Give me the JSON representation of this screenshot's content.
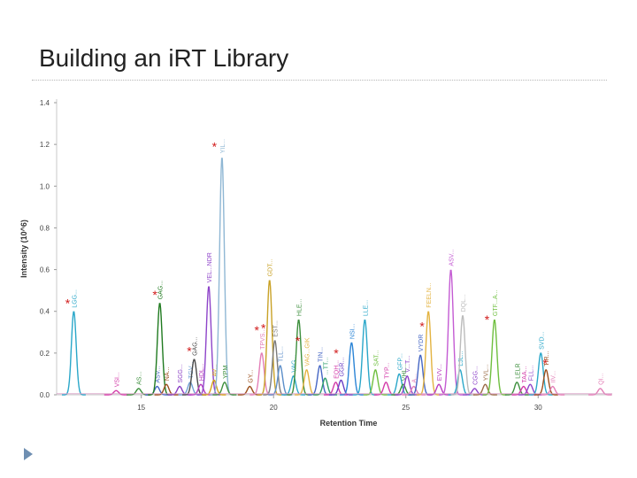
{
  "slide": {
    "title": "Building an iRT Library"
  },
  "chart_data": {
    "type": "line",
    "xlabel": "Retention Time",
    "ylabel": "Intensity (10^6)",
    "xlim": [
      11.8,
      32.8
    ],
    "ylim": [
      0,
      1.4
    ],
    "xticks": [
      15,
      20,
      25,
      30
    ],
    "yticks": [
      "0.0",
      "0.2",
      "0.4",
      "0.6",
      "0.8",
      "1.0",
      "1.2",
      "1.4"
    ],
    "grid": false,
    "peaks": [
      {
        "rt": 12.45,
        "h": 0.4,
        "color": "#2aa7c9",
        "label": "LGG..."
      },
      {
        "rt": 14.05,
        "h": 0.02,
        "color": "#d33aa8",
        "label": "VSI..."
      },
      {
        "rt": 14.9,
        "h": 0.03,
        "color": "#3d8f3d",
        "label": "AS..."
      },
      {
        "rt": 15.6,
        "h": 0.04,
        "color": "#4566c4",
        "label": "ASV..."
      },
      {
        "rt": 15.7,
        "h": 0.44,
        "color": "#1f7a1f",
        "label": "GAG..."
      },
      {
        "rt": 15.95,
        "h": 0.05,
        "color": "#9c4f1c",
        "label": "NA..."
      },
      {
        "rt": 16.45,
        "h": 0.04,
        "color": "#8a3fc4",
        "label": "SGG..."
      },
      {
        "rt": 16.85,
        "h": 0.06,
        "color": "#6fa0d6",
        "label": "TGV..."
      },
      {
        "rt": 17.0,
        "h": 0.17,
        "color": "#4a4a4a",
        "label": "GAG..."
      },
      {
        "rt": 17.25,
        "h": 0.05,
        "color": "#b93bbf",
        "label": "HDL..."
      },
      {
        "rt": 17.55,
        "h": 0.52,
        "color": "#8e44c9",
        "label": "VEL...NDR"
      },
      {
        "rt": 17.75,
        "h": 0.07,
        "color": "#d4a017",
        "label": "AV..."
      },
      {
        "rt": 18.05,
        "h": 1.14,
        "color": "#8fb7d4",
        "label": "YIL..."
      },
      {
        "rt": 18.15,
        "h": 0.06,
        "color": "#3d8f3d",
        "label": "YPM"
      },
      {
        "rt": 19.1,
        "h": 0.04,
        "color": "#9c4f1c",
        "label": "GY..."
      },
      {
        "rt": 19.55,
        "h": 0.2,
        "color": "#e37fb7",
        "label": "TPVS..."
      },
      {
        "rt": 19.85,
        "h": 0.55,
        "color": "#c9a227",
        "label": "GDT..."
      },
      {
        "rt": 20.05,
        "h": 0.26,
        "color": "#7b7b7b",
        "label": "EST..."
      },
      {
        "rt": 20.25,
        "h": 0.14,
        "color": "#5b8ec9",
        "label": "TLL..."
      },
      {
        "rt": 20.75,
        "h": 0.09,
        "color": "#2aa7c9",
        "label": "VAG..."
      },
      {
        "rt": 20.95,
        "h": 0.36,
        "color": "#3d8f3d",
        "label": "HLE..."
      },
      {
        "rt": 21.25,
        "h": 0.12,
        "color": "#e3b341",
        "label": "VAG...GIK"
      },
      {
        "rt": 21.75,
        "h": 0.14,
        "color": "#4566c4",
        "label": "TIN..."
      },
      {
        "rt": 21.95,
        "h": 0.08,
        "color": "#2e9f6b",
        "label": "...TT..."
      },
      {
        "rt": 22.35,
        "h": 0.06,
        "color": "#d33aa8",
        "label": "EQH..."
      },
      {
        "rt": 22.55,
        "h": 0.07,
        "color": "#6a3fc4",
        "label": "GGR..."
      },
      {
        "rt": 22.95,
        "h": 0.25,
        "color": "#2b84d6",
        "label": "NSI..."
      },
      {
        "rt": 23.45,
        "h": 0.36,
        "color": "#2aa7c9",
        "label": "LLE..."
      },
      {
        "rt": 23.85,
        "h": 0.12,
        "color": "#6fbf3f",
        "label": "SAT..."
      },
      {
        "rt": 24.25,
        "h": 0.06,
        "color": "#d33aa8",
        "label": "TYP..."
      },
      {
        "rt": 24.75,
        "h": 0.1,
        "color": "#2aa7c9",
        "label": "GFP..."
      },
      {
        "rt": 24.9,
        "h": 0.05,
        "color": "#3d8f3d",
        "label": "VHL..."
      },
      {
        "rt": 25.05,
        "h": 0.09,
        "color": "#8e44c9",
        "label": "V...T..."
      },
      {
        "rt": 25.3,
        "h": 0.04,
        "color": "#e37fb7",
        "label": "A..."
      },
      {
        "rt": 25.55,
        "h": 0.19,
        "color": "#4566c4",
        "label": "VYDR"
      },
      {
        "rt": 25.85,
        "h": 0.4,
        "color": "#e3b341",
        "label": "FEELN..."
      },
      {
        "rt": 26.25,
        "h": 0.05,
        "color": "#b93bbf",
        "label": "EVV..."
      },
      {
        "rt": 26.7,
        "h": 0.6,
        "color": "#c45bd3",
        "label": "ASV..."
      },
      {
        "rt": 27.05,
        "h": 0.12,
        "color": "#2aa7c9",
        "label": "LJL..."
      },
      {
        "rt": 27.15,
        "h": 0.38,
        "color": "#bcbcbc",
        "label": "DQL..."
      },
      {
        "rt": 27.6,
        "h": 0.03,
        "color": "#8e44c9",
        "label": "CGG..."
      },
      {
        "rt": 28.0,
        "h": 0.05,
        "color": "#9a6b44",
        "label": "YVL..."
      },
      {
        "rt": 28.35,
        "h": 0.36,
        "color": "#6fbf3f",
        "label": "GTF...A..."
      },
      {
        "rt": 29.2,
        "h": 0.06,
        "color": "#3d8f3d",
        "label": "LELR"
      },
      {
        "rt": 29.45,
        "h": 0.04,
        "color": "#d33aa8",
        "label": "TAA..."
      },
      {
        "rt": 29.7,
        "h": 0.05,
        "color": "#8e44c9",
        "label": "FLL..."
      },
      {
        "rt": 30.1,
        "h": 0.2,
        "color": "#2aa7c9",
        "label": "SVD..."
      },
      {
        "rt": 30.3,
        "h": 0.12,
        "color": "#9c4f1c",
        "label": "TIR..."
      },
      {
        "rt": 30.55,
        "h": 0.04,
        "color": "#e37fb7",
        "label": "IIV..."
      },
      {
        "rt": 32.35,
        "h": 0.03,
        "color": "#e37fb7",
        "label": "QI..."
      }
    ],
    "asterisks": [
      {
        "rt": 12.45,
        "h": 0.41
      },
      {
        "rt": 15.75,
        "h": 0.45
      },
      {
        "rt": 17.05,
        "h": 0.18
      },
      {
        "rt": 18.0,
        "h": 1.16
      },
      {
        "rt": 19.6,
        "h": 0.28
      },
      {
        "rt": 19.85,
        "h": 0.29
      },
      {
        "rt": 21.15,
        "h": 0.23
      },
      {
        "rt": 22.6,
        "h": 0.17
      },
      {
        "rt": 25.85,
        "h": 0.3
      },
      {
        "rt": 28.3,
        "h": 0.33
      },
      {
        "rt": 30.5,
        "h": 0.12
      }
    ]
  }
}
